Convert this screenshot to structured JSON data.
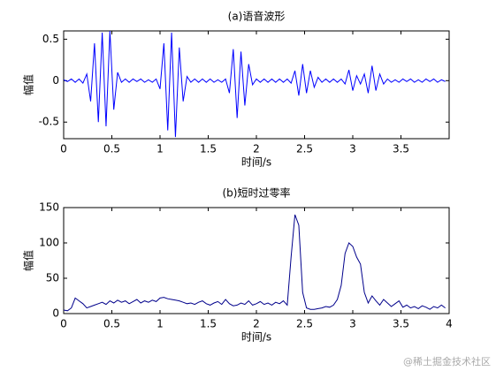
{
  "chart_data": [
    {
      "type": "line",
      "title": "(a)语音波形",
      "xlabel": "时间/s",
      "ylabel": "幅值",
      "xlim": [
        0,
        4
      ],
      "xticks": [
        0,
        0.5,
        1,
        1.5,
        2,
        2.5,
        3,
        3.5
      ],
      "ylim": [
        -0.7,
        0.6
      ],
      "yticks": [
        -0.5,
        0,
        0.5
      ],
      "color": "#0000ff",
      "x": [
        0,
        0.04,
        0.08,
        0.12,
        0.16,
        0.2,
        0.24,
        0.28,
        0.32,
        0.36,
        0.4,
        0.44,
        0.48,
        0.52,
        0.56,
        0.6,
        0.64,
        0.68,
        0.72,
        0.76,
        0.8,
        0.84,
        0.88,
        0.92,
        0.96,
        1,
        1.04,
        1.08,
        1.12,
        1.16,
        1.2,
        1.24,
        1.28,
        1.32,
        1.36,
        1.4,
        1.44,
        1.48,
        1.52,
        1.56,
        1.6,
        1.64,
        1.68,
        1.72,
        1.76,
        1.8,
        1.84,
        1.88,
        1.92,
        1.96,
        2,
        2.04,
        2.08,
        2.12,
        2.16,
        2.2,
        2.24,
        2.28,
        2.32,
        2.36,
        2.4,
        2.44,
        2.48,
        2.52,
        2.56,
        2.6,
        2.64,
        2.68,
        2.72,
        2.76,
        2.8,
        2.84,
        2.88,
        2.92,
        2.96,
        3,
        3.04,
        3.08,
        3.12,
        3.16,
        3.2,
        3.24,
        3.28,
        3.32,
        3.36,
        3.4,
        3.44,
        3.48,
        3.52,
        3.56,
        3.6,
        3.64,
        3.68,
        3.72,
        3.76,
        3.8,
        3.84,
        3.88,
        3.92,
        3.96
      ],
      "values": [
        0.01,
        -0.01,
        0.02,
        -0.02,
        0.02,
        -0.03,
        0.08,
        -0.25,
        0.45,
        -0.5,
        0.58,
        -0.55,
        0.6,
        -0.35,
        0.1,
        -0.02,
        0.02,
        -0.02,
        0.02,
        -0.01,
        0.02,
        -0.02,
        0.01,
        -0.02,
        0.02,
        -0.1,
        0.45,
        -0.6,
        0.58,
        -0.68,
        0.4,
        -0.25,
        0.05,
        -0.02,
        0.02,
        -0.02,
        0.02,
        -0.02,
        0.02,
        -0.02,
        0.01,
        -0.02,
        0.02,
        -0.15,
        0.38,
        -0.45,
        0.35,
        -0.3,
        0.2,
        -0.05,
        0.02,
        -0.02,
        0.02,
        -0.02,
        0.02,
        -0.02,
        0.02,
        -0.02,
        0.02,
        -0.03,
        0.12,
        -0.18,
        0.2,
        -0.15,
        0.12,
        -0.08,
        0.04,
        -0.02,
        0.02,
        -0.02,
        0.02,
        -0.02,
        0.02,
        -0.04,
        0.13,
        -0.12,
        0.06,
        -0.04,
        0.08,
        -0.15,
        0.18,
        -0.12,
        0.08,
        -0.04,
        0.02,
        -0.02,
        0.01,
        -0.02,
        0.02,
        -0.01,
        0.02,
        -0.02,
        0.01,
        -0.02,
        0.02,
        -0.01,
        0.02,
        -0.02,
        0.01,
        -0.01
      ]
    },
    {
      "type": "line",
      "title": "(b)短时过零率",
      "xlabel": "时间/s",
      "ylabel": "幅值",
      "xlim": [
        0,
        4
      ],
      "xticks": [
        0,
        0.5,
        1,
        1.5,
        2,
        2.5,
        3,
        3.5,
        4
      ],
      "ylim": [
        0,
        150
      ],
      "yticks": [
        0,
        50,
        100,
        150
      ],
      "color": "#00008b",
      "x": [
        0,
        0.04,
        0.08,
        0.12,
        0.16,
        0.2,
        0.24,
        0.28,
        0.32,
        0.36,
        0.4,
        0.44,
        0.48,
        0.52,
        0.56,
        0.6,
        0.64,
        0.68,
        0.72,
        0.76,
        0.8,
        0.84,
        0.88,
        0.92,
        0.96,
        1,
        1.04,
        1.08,
        1.12,
        1.16,
        1.2,
        1.24,
        1.28,
        1.32,
        1.36,
        1.4,
        1.44,
        1.48,
        1.52,
        1.56,
        1.6,
        1.64,
        1.68,
        1.72,
        1.76,
        1.8,
        1.84,
        1.88,
        1.92,
        1.96,
        2,
        2.04,
        2.08,
        2.12,
        2.16,
        2.2,
        2.24,
        2.28,
        2.32,
        2.36,
        2.4,
        2.44,
        2.48,
        2.52,
        2.56,
        2.6,
        2.64,
        2.68,
        2.72,
        2.76,
        2.8,
        2.84,
        2.88,
        2.92,
        2.96,
        3,
        3.04,
        3.08,
        3.12,
        3.16,
        3.2,
        3.24,
        3.28,
        3.32,
        3.36,
        3.4,
        3.44,
        3.48,
        3.52,
        3.56,
        3.6,
        3.64,
        3.68,
        3.72,
        3.76,
        3.8,
        3.84,
        3.88,
        3.92,
        3.96
      ],
      "values": [
        5,
        4,
        8,
        22,
        18,
        14,
        8,
        10,
        12,
        14,
        16,
        13,
        18,
        15,
        19,
        16,
        18,
        14,
        17,
        20,
        15,
        18,
        16,
        19,
        17,
        22,
        23,
        21,
        20,
        19,
        18,
        16,
        14,
        15,
        13,
        16,
        18,
        14,
        12,
        15,
        17,
        13,
        20,
        14,
        11,
        12,
        15,
        13,
        18,
        12,
        14,
        17,
        13,
        15,
        12,
        16,
        14,
        18,
        12,
        80,
        140,
        125,
        30,
        8,
        6,
        6,
        7,
        8,
        10,
        9,
        12,
        20,
        40,
        85,
        100,
        95,
        80,
        70,
        30,
        15,
        25,
        18,
        12,
        20,
        15,
        10,
        14,
        18,
        9,
        12,
        8,
        10,
        7,
        11,
        9,
        6,
        10,
        8,
        12,
        8
      ]
    }
  ],
  "watermark": "@稀土掘金技术社区"
}
